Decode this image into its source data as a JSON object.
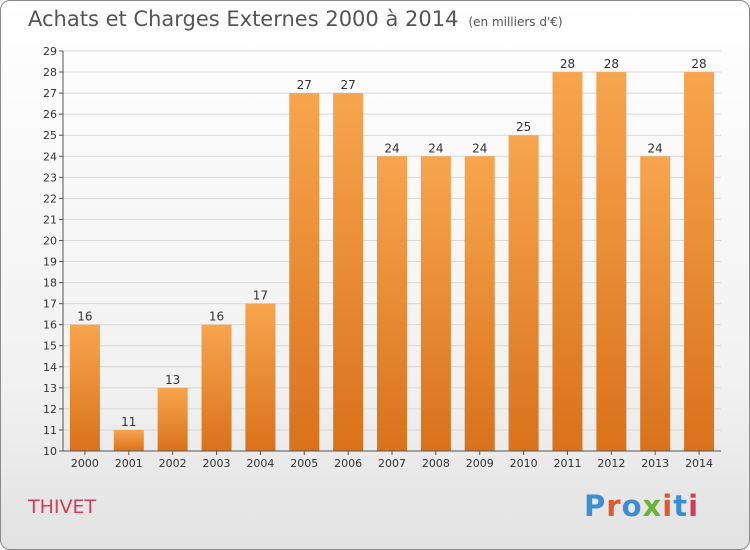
{
  "header": {
    "title": "Achats et Charges Externes 2000 à 2014",
    "subtitle": "(en milliers d'€)"
  },
  "footer": {
    "commune": "THIVET",
    "logo_text": "Proxiti",
    "logo_colors": [
      "#3b8ed4",
      "#e2592b",
      "#3b8ed4",
      "#6ab23a",
      "#e2592b",
      "#3b8ed4",
      "#d13c5a"
    ]
  },
  "colors": {
    "bar_light": "#f7a54e",
    "bar_dark": "#d9721b",
    "grid": "#d8d8d8",
    "axis": "#555555",
    "text": "#333333"
  },
  "chart_data": {
    "type": "bar",
    "title": "Achats et Charges Externes 2000 à 2014",
    "subtitle": "(en milliers d'€)",
    "categories": [
      "2000",
      "2001",
      "2002",
      "2003",
      "2004",
      "2005",
      "2006",
      "2007",
      "2008",
      "2009",
      "2010",
      "2011",
      "2012",
      "2013",
      "2014"
    ],
    "values": [
      16,
      11,
      13,
      16,
      17,
      27,
      27,
      24,
      24,
      24,
      25,
      28,
      28,
      24,
      28
    ],
    "value_labels": [
      "16",
      "11",
      "13",
      "16",
      "17",
      "27",
      "27",
      "24",
      "24",
      "24",
      "25",
      "28",
      "28",
      "24",
      "28"
    ],
    "ylim": [
      10,
      29
    ],
    "yticks": [
      "10",
      "11",
      "12",
      "13",
      "14",
      "15",
      "16",
      "17",
      "18",
      "19",
      "20",
      "21",
      "22",
      "23",
      "24",
      "25",
      "26",
      "27",
      "28",
      "29"
    ],
    "grid": true,
    "xlabel": "",
    "ylabel": ""
  }
}
